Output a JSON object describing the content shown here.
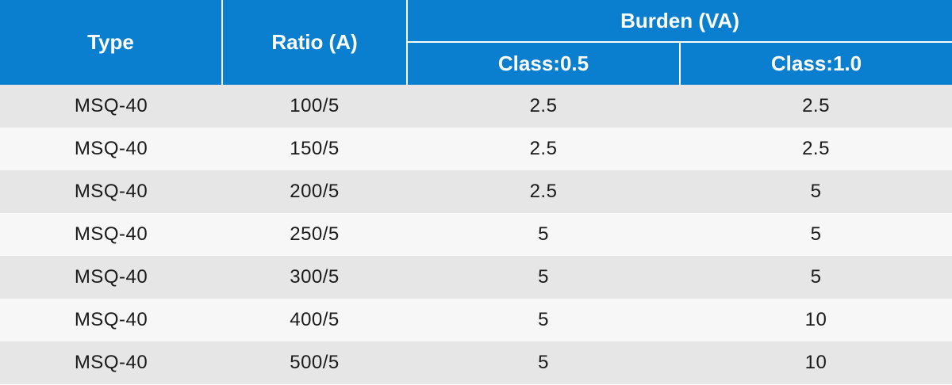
{
  "table": {
    "headers": {
      "type": "Type",
      "ratio": "Ratio (A)",
      "burden": "Burden (VA)",
      "class_05": "Class:0.5",
      "class_10": "Class:1.0"
    },
    "rows": [
      {
        "type": "MSQ-40",
        "ratio": "100/5",
        "class_05": "2.5",
        "class_10": "2.5"
      },
      {
        "type": "MSQ-40",
        "ratio": "150/5",
        "class_05": "2.5",
        "class_10": "2.5"
      },
      {
        "type": "MSQ-40",
        "ratio": "200/5",
        "class_05": "2.5",
        "class_10": "5"
      },
      {
        "type": "MSQ-40",
        "ratio": "250/5",
        "class_05": "5",
        "class_10": "5"
      },
      {
        "type": "MSQ-40",
        "ratio": "300/5",
        "class_05": "5",
        "class_10": "5"
      },
      {
        "type": "MSQ-40",
        "ratio": "400/5",
        "class_05": "5",
        "class_10": "10"
      },
      {
        "type": "MSQ-40",
        "ratio": "500/5",
        "class_05": "5",
        "class_10": "10"
      }
    ]
  },
  "colors": {
    "header_bg": "#0a7fd0",
    "header_text": "#ffffff",
    "row_odd": "#e6e6e6",
    "row_even": "#f7f7f7"
  }
}
